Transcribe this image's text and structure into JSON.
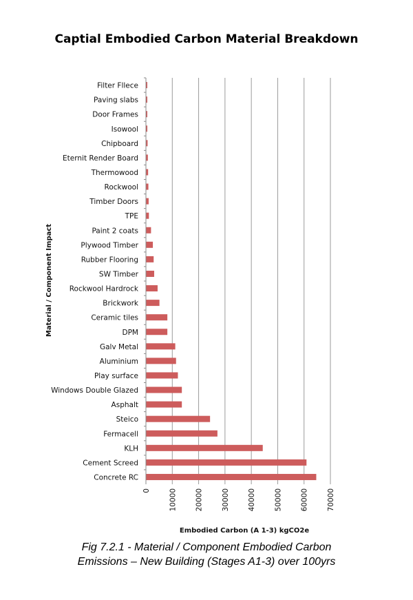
{
  "chart_data": {
    "type": "bar",
    "orientation": "horizontal",
    "title": "Captial Embodied Carbon Material Breakdown",
    "xlabel": "Embodied Carbon (A 1-3) kgCO2e",
    "ylabel": "Material / Component Impact",
    "xlim": [
      0,
      70000
    ],
    "xticks": [
      "0",
      "10000",
      "20000",
      "30000",
      "40000",
      "50000",
      "60000",
      "70000"
    ],
    "grid": true,
    "legend": "none",
    "bar_color": "#cd5c5c",
    "categories": [
      "Filter Fllece",
      "Paving slabs",
      "Door Frames",
      "Isowool",
      "Chipboard",
      "Eternit Render Board",
      "Thermowood",
      "Rockwool",
      "Timber Doors",
      "TPE",
      "Paint 2 coats",
      "Plywood Timber",
      "Rubber Flooring",
      "SW Timber",
      "Rockwool Hardrock",
      "Brickwork",
      "Ceramic tiles",
      "DPM",
      "Galv Metal",
      "Aluminium",
      "Play surface",
      "Windows Double Glazed",
      "Asphalt",
      "Steico",
      "Fermacell",
      "KLH",
      "Cement Screed",
      "Concrete RC"
    ],
    "values": [
      200,
      300,
      300,
      400,
      500,
      600,
      700,
      800,
      900,
      1000,
      1800,
      2500,
      2800,
      3000,
      4300,
      5000,
      8000,
      8000,
      11000,
      11300,
      12000,
      13500,
      13500,
      24200,
      27000,
      44200,
      60800,
      64500
    ]
  },
  "caption": {
    "line1": "Fig 7.2.1 - Material / Component Embodied Carbon",
    "line2": "Emissions – New Building (Stages A1-3) over 100yrs"
  }
}
